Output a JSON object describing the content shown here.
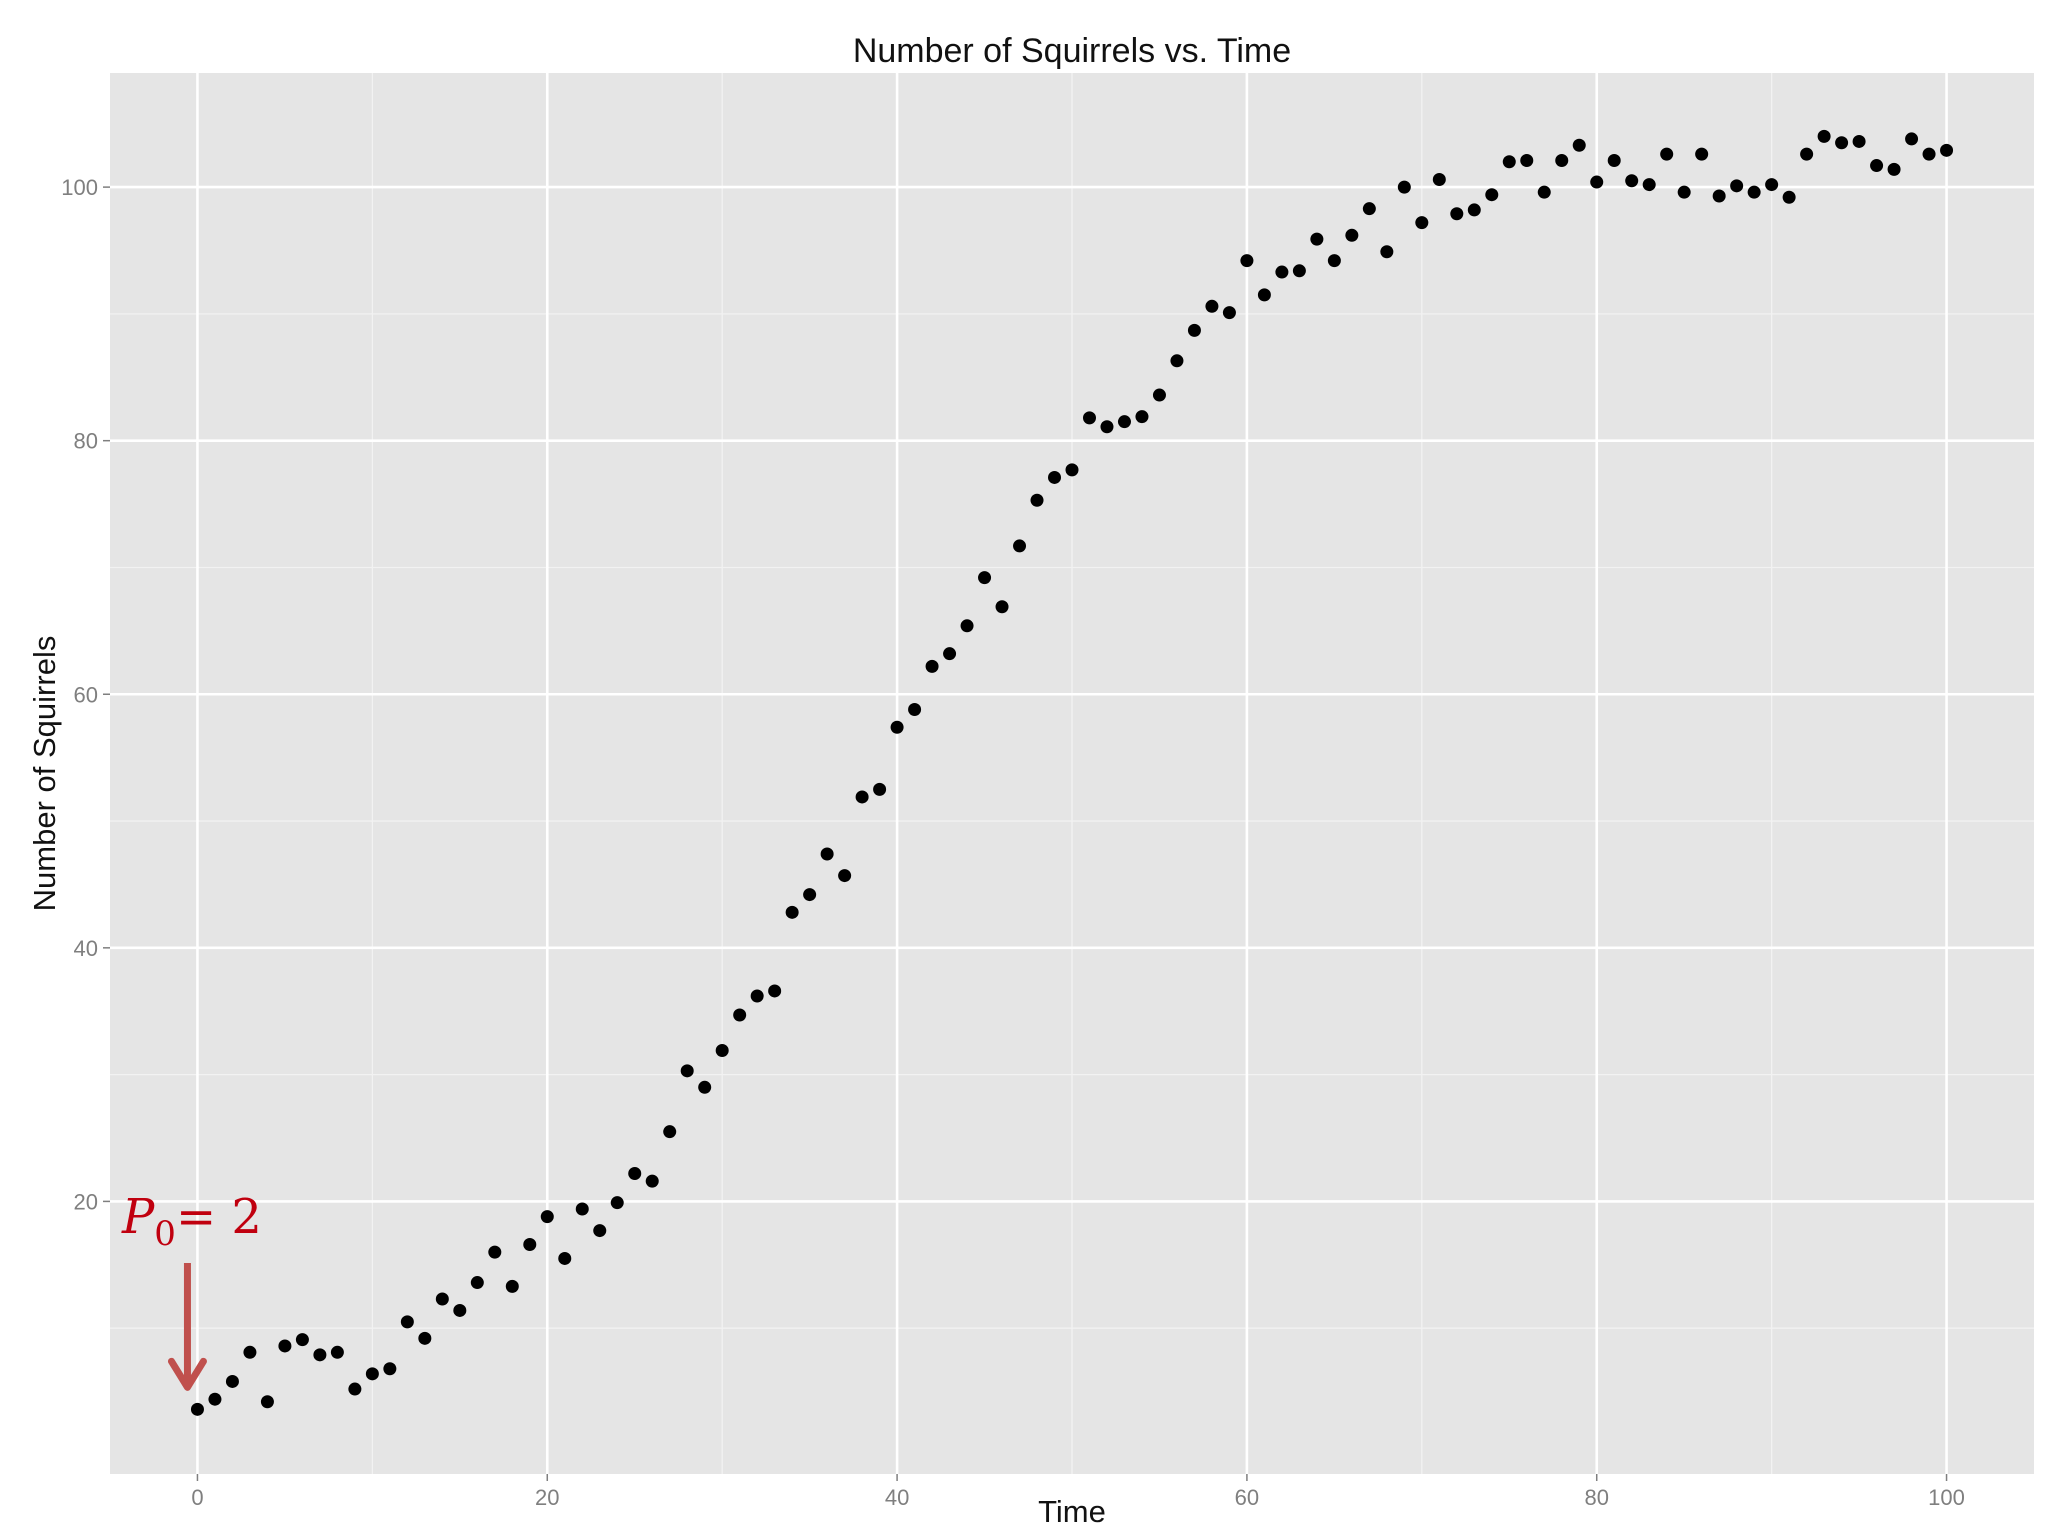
{
  "chart_data": {
    "type": "scatter",
    "title": "Number of Squirrels vs. Time",
    "xlabel": "Time",
    "ylabel": "Number of Squirrels",
    "xlim": [
      -5,
      105
    ],
    "ylim": [
      -1.5,
      109
    ],
    "x_ticks": [
      0,
      20,
      40,
      60,
      80,
      100
    ],
    "y_ticks": [
      20,
      40,
      60,
      80,
      100
    ],
    "grid": true,
    "legend": "none",
    "colors": {
      "panel_bg": "#e5e5e5",
      "grid_major": "#ffffff",
      "grid_minor": "#f2f2f2",
      "point": "#000000",
      "annotation": "#c0000f",
      "arrow": "#c0504d"
    },
    "points": [
      {
        "x": 0,
        "y": 3.6
      },
      {
        "x": 1,
        "y": 4.4
      },
      {
        "x": 2,
        "y": 5.8
      },
      {
        "x": 3,
        "y": 8.1
      },
      {
        "x": 4,
        "y": 4.2
      },
      {
        "x": 5,
        "y": 8.6
      },
      {
        "x": 6,
        "y": 9.1
      },
      {
        "x": 7,
        "y": 7.9
      },
      {
        "x": 8,
        "y": 8.1
      },
      {
        "x": 9,
        "y": 5.2
      },
      {
        "x": 10,
        "y": 6.4
      },
      {
        "x": 11,
        "y": 6.8
      },
      {
        "x": 12,
        "y": 10.5
      },
      {
        "x": 13,
        "y": 9.2
      },
      {
        "x": 14,
        "y": 12.3
      },
      {
        "x": 15,
        "y": 11.4
      },
      {
        "x": 16,
        "y": 13.6
      },
      {
        "x": 17,
        "y": 16.0
      },
      {
        "x": 18,
        "y": 13.3
      },
      {
        "x": 19,
        "y": 16.6
      },
      {
        "x": 20,
        "y": 18.8
      },
      {
        "x": 21,
        "y": 15.5
      },
      {
        "x": 22,
        "y": 19.4
      },
      {
        "x": 23,
        "y": 17.7
      },
      {
        "x": 24,
        "y": 19.9
      },
      {
        "x": 25,
        "y": 22.2
      },
      {
        "x": 26,
        "y": 21.6
      },
      {
        "x": 27,
        "y": 25.5
      },
      {
        "x": 28,
        "y": 30.3
      },
      {
        "x": 29,
        "y": 29.0
      },
      {
        "x": 30,
        "y": 31.9
      },
      {
        "x": 31,
        "y": 34.7
      },
      {
        "x": 32,
        "y": 36.2
      },
      {
        "x": 33,
        "y": 36.6
      },
      {
        "x": 34,
        "y": 42.8
      },
      {
        "x": 35,
        "y": 44.2
      },
      {
        "x": 36,
        "y": 47.4
      },
      {
        "x": 37,
        "y": 45.7
      },
      {
        "x": 38,
        "y": 51.9
      },
      {
        "x": 39,
        "y": 52.5
      },
      {
        "x": 40,
        "y": 57.4
      },
      {
        "x": 41,
        "y": 58.8
      },
      {
        "x": 42,
        "y": 62.2
      },
      {
        "x": 43,
        "y": 63.2
      },
      {
        "x": 44,
        "y": 65.4
      },
      {
        "x": 45,
        "y": 69.2
      },
      {
        "x": 46,
        "y": 66.9
      },
      {
        "x": 47,
        "y": 71.7
      },
      {
        "x": 48,
        "y": 75.3
      },
      {
        "x": 49,
        "y": 77.1
      },
      {
        "x": 50,
        "y": 77.7
      },
      {
        "x": 51,
        "y": 81.8
      },
      {
        "x": 52,
        "y": 81.1
      },
      {
        "x": 53,
        "y": 81.5
      },
      {
        "x": 54,
        "y": 81.9
      },
      {
        "x": 55,
        "y": 83.6
      },
      {
        "x": 56,
        "y": 86.3
      },
      {
        "x": 57,
        "y": 88.7
      },
      {
        "x": 58,
        "y": 90.6
      },
      {
        "x": 59,
        "y": 90.1
      },
      {
        "x": 60,
        "y": 94.2
      },
      {
        "x": 61,
        "y": 91.5
      },
      {
        "x": 62,
        "y": 93.3
      },
      {
        "x": 63,
        "y": 93.4
      },
      {
        "x": 64,
        "y": 95.9
      },
      {
        "x": 65,
        "y": 94.2
      },
      {
        "x": 66,
        "y": 96.2
      },
      {
        "x": 67,
        "y": 98.3
      },
      {
        "x": 68,
        "y": 94.9
      },
      {
        "x": 69,
        "y": 100.0
      },
      {
        "x": 70,
        "y": 97.2
      },
      {
        "x": 71,
        "y": 100.6
      },
      {
        "x": 72,
        "y": 97.9
      },
      {
        "x": 73,
        "y": 98.2
      },
      {
        "x": 74,
        "y": 99.4
      },
      {
        "x": 75,
        "y": 102.0
      },
      {
        "x": 76,
        "y": 102.1
      },
      {
        "x": 77,
        "y": 99.6
      },
      {
        "x": 78,
        "y": 102.1
      },
      {
        "x": 79,
        "y": 103.3
      },
      {
        "x": 80,
        "y": 100.4
      },
      {
        "x": 81,
        "y": 102.1
      },
      {
        "x": 82,
        "y": 100.5
      },
      {
        "x": 83,
        "y": 100.2
      },
      {
        "x": 84,
        "y": 102.6
      },
      {
        "x": 85,
        "y": 99.6
      },
      {
        "x": 86,
        "y": 102.6
      },
      {
        "x": 87,
        "y": 99.3
      },
      {
        "x": 88,
        "y": 100.1
      },
      {
        "x": 89,
        "y": 99.6
      },
      {
        "x": 90,
        "y": 100.2
      },
      {
        "x": 91,
        "y": 99.2
      },
      {
        "x": 92,
        "y": 102.6
      },
      {
        "x": 93,
        "y": 104.0
      },
      {
        "x": 94,
        "y": 103.5
      },
      {
        "x": 95,
        "y": 103.6
      },
      {
        "x": 96,
        "y": 101.7
      },
      {
        "x": 97,
        "y": 101.4
      },
      {
        "x": 98,
        "y": 103.8
      },
      {
        "x": 99,
        "y": 102.6
      },
      {
        "x": 100,
        "y": 102.9
      }
    ],
    "annotations": [
      {
        "text_main": "P",
        "text_sub": "0",
        "text_rest": "= 2",
        "arrow_to": {
          "x": 0,
          "y": 3.6
        }
      }
    ]
  }
}
